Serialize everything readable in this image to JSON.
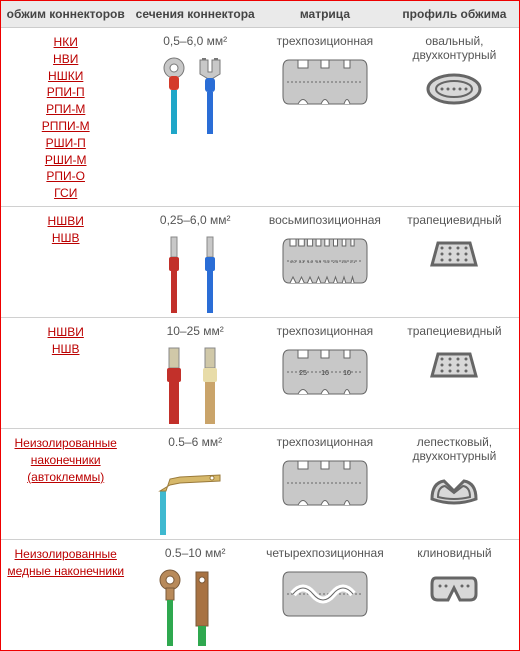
{
  "headers": {
    "connectors": "обжим коннекторов",
    "section": "сечения коннектора",
    "matrix": "матрица",
    "profile": "профиль обжима"
  },
  "colors": {
    "link": "#b00000",
    "header_bg": "#eaeaea",
    "border": "#e00000",
    "die_fill": "#c8c8c8",
    "die_stroke": "#666666",
    "profile_stroke": "#666666",
    "profile_fill": "#d8d8d8"
  },
  "rows": [
    {
      "links": [
        "НКИ",
        "НВИ",
        "НШКИ",
        "РПИ-П",
        "РПИ-М",
        "РППИ-М",
        "РШИ-П",
        "РШИ-М",
        "РПИ-О",
        "ГСИ"
      ],
      "section": "0,5–6,0 мм²",
      "matrix_label": "трехпозиционная",
      "matrix_type": "three",
      "profile_label": "овальный, двухконтурный",
      "profile_type": "oval2",
      "conn_svg": "ring_fork",
      "conn_colors": {
        "a_wire": "#1fa6c8",
        "a_sleeve": "#d43a2a",
        "b_wire": "#2a6dd6",
        "b_sleeve": "#2a6dd6",
        "metal": "#b8b8b8"
      }
    },
    {
      "links": [
        "НШВИ",
        "НШВ"
      ],
      "section": "0,25–6,0 мм²",
      "matrix_label": "восьмипозиционная",
      "matrix_type": "eight",
      "profile_label": "трапециевидный",
      "profile_type": "trap",
      "conn_svg": "ferrule",
      "conn_colors": {
        "a_wire": "#c2302a",
        "a_sleeve": "#c2302a",
        "b_wire": "#2a6dd6",
        "b_sleeve": "#2a6dd6",
        "metal": "#c8c8c8"
      }
    },
    {
      "links": [
        "НШВИ",
        "НШВ"
      ],
      "section": "10–25 мм²",
      "matrix_label": "трехпозиционная",
      "matrix_type": "three_labeled",
      "matrix_notches": [
        "25",
        "16",
        "10"
      ],
      "profile_label": "трапециевидный",
      "profile_type": "trap",
      "conn_svg": "ferrule_big",
      "conn_colors": {
        "a_wire": "#c2302a",
        "a_sleeve": "#c2302a",
        "b_wire": "#caa46a",
        "b_sleeve": "#e8dca8",
        "metal": "#d0c8a8"
      }
    },
    {
      "links": [
        "Неизолированные наконечники (автоклеммы)"
      ],
      "section": "0.5–6 мм²",
      "matrix_label": "трехпозиционная",
      "matrix_type": "three",
      "profile_label": "лепестковый, двухконтурный",
      "profile_type": "petal2",
      "conn_svg": "auto_terminal",
      "conn_colors": {
        "wire": "#3fb9d0",
        "metal": "#d6b86a"
      }
    },
    {
      "links": [
        "Неизолированные медные наконечники"
      ],
      "section": "0.5–10 мм²",
      "matrix_label": "четырехпозиционная",
      "matrix_type": "four_wave",
      "profile_label": "клиновидный",
      "profile_type": "wedge",
      "conn_svg": "copper_lug",
      "conn_colors": {
        "wire": "#2fa84f",
        "metal": "#b88a5a",
        "copper": "#a87242"
      }
    }
  ]
}
